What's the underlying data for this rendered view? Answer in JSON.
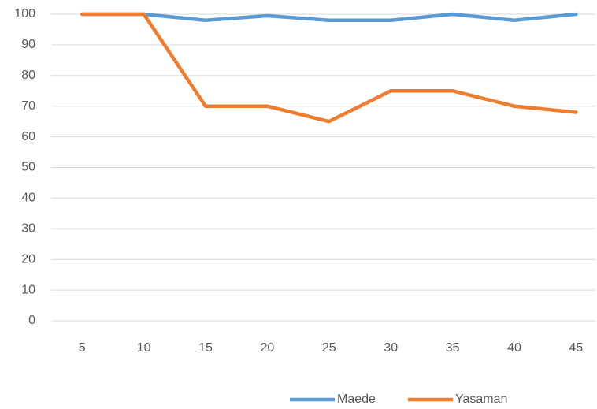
{
  "chart_data": {
    "type": "line",
    "categories": [
      5,
      10,
      15,
      20,
      25,
      30,
      35,
      40,
      45
    ],
    "series": [
      {
        "name": "Maede",
        "color": "#5b9bd5",
        "values": [
          100,
          100,
          98,
          99.5,
          98,
          98,
          100,
          98,
          100
        ]
      },
      {
        "name": "Yasaman",
        "color": "#ed7d31",
        "values": [
          100,
          100,
          70,
          70,
          65,
          75,
          75,
          70,
          68
        ]
      }
    ],
    "ylim": [
      0,
      100
    ],
    "yticks": [
      0,
      10,
      20,
      30,
      40,
      50,
      60,
      70,
      80,
      90,
      100
    ],
    "grid": true,
    "legend": "bottom"
  }
}
